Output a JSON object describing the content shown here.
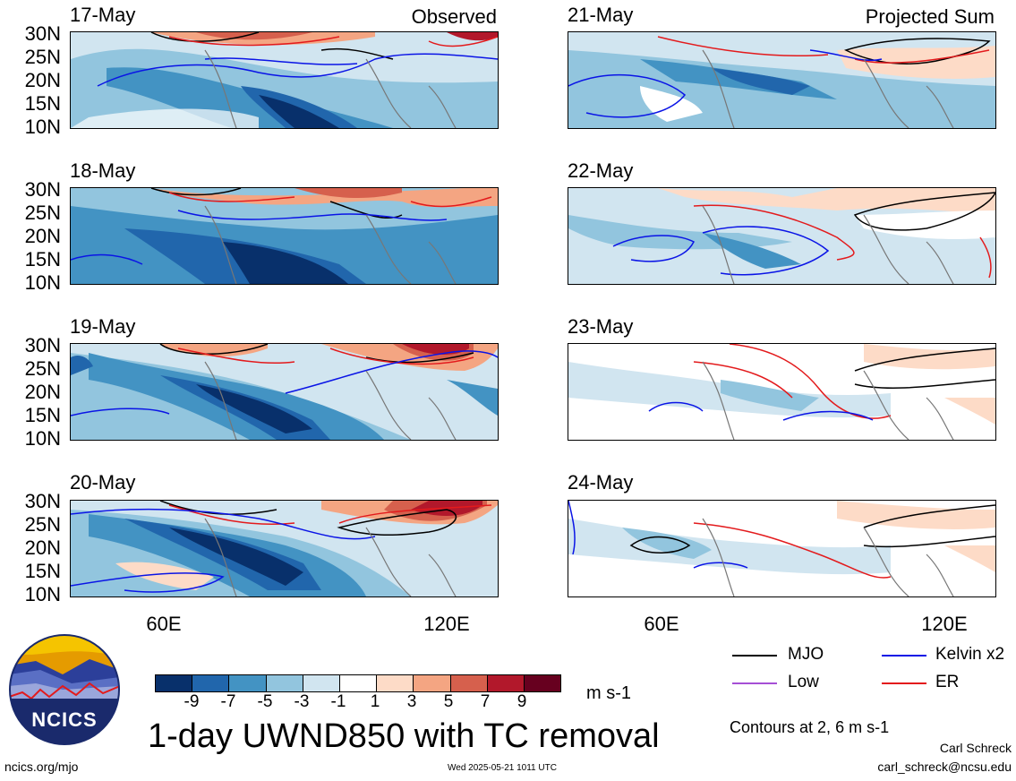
{
  "left_tag": "Observed",
  "right_tag": "Projected Sum",
  "lat_labels": [
    "30N",
    "25N",
    "20N",
    "15N",
    "10N"
  ],
  "lon_labels": [
    "60E",
    "120E"
  ],
  "panels_left": [
    {
      "date": "17-May"
    },
    {
      "date": "18-May"
    },
    {
      "date": "19-May"
    },
    {
      "date": "20-May"
    }
  ],
  "panels_right": [
    {
      "date": "21-May"
    },
    {
      "date": "22-May"
    },
    {
      "date": "23-May"
    },
    {
      "date": "24-May"
    }
  ],
  "colorbar": {
    "labels": [
      "-9",
      "-7",
      "-5",
      "-3",
      "-1",
      "1",
      "3",
      "5",
      "7",
      "9"
    ],
    "units": "m s-1",
    "colors": [
      "#08306b",
      "#2166ac",
      "#4393c3",
      "#92c5de",
      "#d1e5f0",
      "#ffffff",
      "#fddbc7",
      "#f4a582",
      "#d6604d",
      "#b2182b",
      "#67001f"
    ]
  },
  "title": "1-day UWND850 with TC removal",
  "legend": {
    "mjo": "MJO",
    "kelvin": "Kelvin x2",
    "low": "Low",
    "er": "ER",
    "contours": "Contours at 2, 6 m s-1",
    "colors": {
      "mjo": "#000000",
      "kelvin": "#0a14e6",
      "low": "#a64fd6",
      "er": "#e31a1c"
    }
  },
  "footer": {
    "left": "ncics.org/mjo",
    "center": "Wed 2025-05-21 1011 UTC",
    "author": "Carl Schreck",
    "email": "carl_schreck@ncsu.edu"
  },
  "logo": {
    "text": "NCICS"
  }
}
